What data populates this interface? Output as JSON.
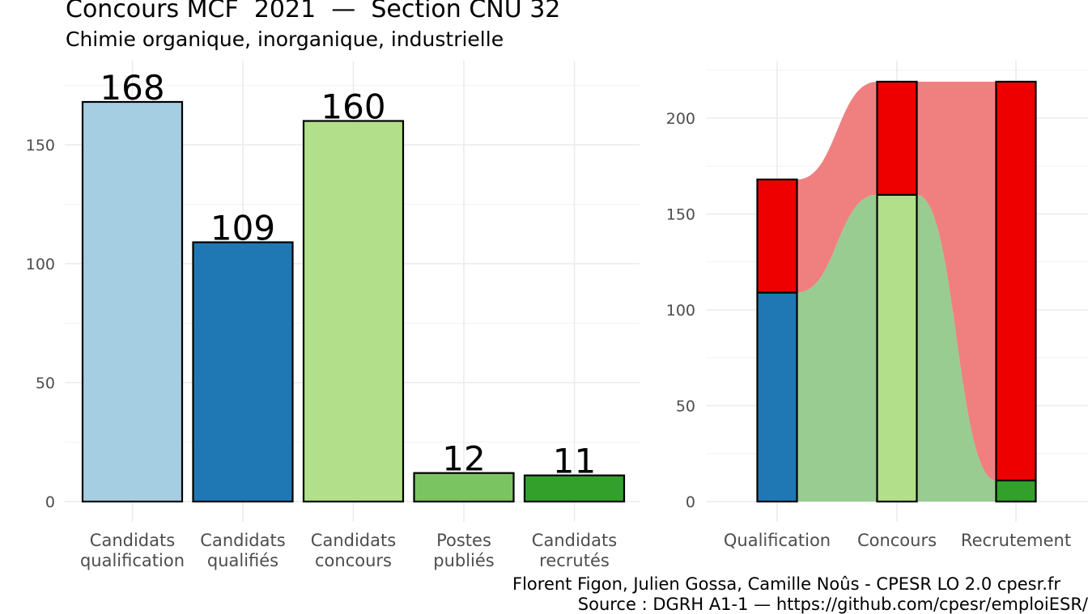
{
  "header": {
    "title": "Concours MCF  2021  —  Section CNU 32",
    "subtitle": "Chimie organique, inorganique, industrielle"
  },
  "footer": {
    "caption_line1": "Florent Figon, Julien Gossa, Camille Noûs - CPESR LO 2.0 cpesr.fr",
    "caption_line2": "Source : DGRH A1-1 — https://github.com/cpesr/emploiESR/"
  },
  "chart_data": [
    {
      "type": "bar",
      "categories": [
        [
          "Candidats",
          "qualification"
        ],
        [
          "Candidats",
          "qualifiés"
        ],
        [
          "Candidats",
          "concours"
        ],
        [
          "Postes",
          "publiés"
        ],
        [
          "Candidats",
          "recrutés"
        ]
      ],
      "values": [
        168,
        109,
        160,
        12,
        11
      ],
      "data_labels": [
        "168",
        "109",
        "160",
        "12",
        "11"
      ],
      "colors": [
        "#a6cee3",
        "#1f78b4",
        "#b2df8a",
        "#7bc462",
        "#33a02c"
      ],
      "ylim": [
        0,
        168
      ],
      "yticks": [
        0,
        50,
        100,
        150
      ],
      "grid": true
    },
    {
      "type": "area",
      "categories": [
        "Qualification",
        "Concours",
        "Recrutement"
      ],
      "series": [
        {
          "values": [
            109,
            160,
            11
          ],
          "color": "#98cc91"
        },
        {
          "values": [
            59,
            59,
            208
          ],
          "color": "#f08080"
        }
      ],
      "bar_colors": [
        [
          "#1f78b4",
          "#ee0000"
        ],
        [
          "#b2df8a",
          "#ee0000"
        ],
        [
          "#33a02c",
          "#ee0000"
        ]
      ],
      "totals": [
        168,
        219,
        219
      ],
      "ylim": [
        0,
        219
      ],
      "yticks": [
        0,
        50,
        100,
        150,
        200
      ],
      "grid": true
    }
  ]
}
